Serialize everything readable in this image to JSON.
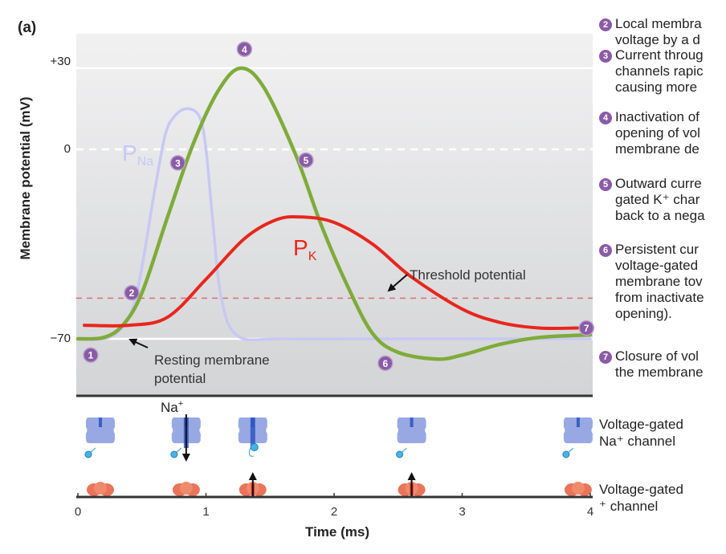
{
  "figure": {
    "panel_label": "(a)",
    "y_axis_label": "Membrane potential (mV)",
    "x_axis_label": "Time (ms)",
    "y_ticks": [
      "+30",
      "0",
      "−70"
    ],
    "x_ticks": [
      "0",
      "1",
      "2",
      "3",
      "4"
    ],
    "annotations": {
      "p_na": "P",
      "p_na_sub": "Na",
      "p_k": "P",
      "p_k_sub": "K",
      "threshold": "Threshold potential",
      "resting_line1": "Resting membrane",
      "resting_line2": "potential",
      "na_ion": "Na",
      "na_ion_sup": "+"
    },
    "step_markers": [
      "1",
      "2",
      "3",
      "4",
      "5",
      "6",
      "7"
    ],
    "steps": [
      {
        "num": "2",
        "lines": [
          "Local membra",
          "voltage by a d"
        ]
      },
      {
        "num": "3",
        "lines": [
          "Current throug",
          "channels rapic",
          "causing more"
        ]
      },
      {
        "num": "4",
        "lines": [
          "Inactivation of",
          "opening of vol",
          "membrane de"
        ]
      },
      {
        "num": "5",
        "lines": [
          "Outward curre",
          "gated K⁺ char",
          "back to a nega"
        ]
      },
      {
        "num": "6",
        "lines": [
          "Persistent cur",
          "voltage-gated",
          "membrane tov",
          "from inactivate",
          "opening)."
        ]
      },
      {
        "num": "7",
        "lines": [
          "Closure of vol",
          "the membrane"
        ]
      }
    ],
    "channel_labels": {
      "na_line1": "Voltage-gated",
      "na_line2": "Na⁺ channel",
      "k_line1": "Voltage-gated",
      "k_line2": "⁺ channel"
    },
    "colors": {
      "membrane_potential": "#7fab3a",
      "p_na": "#c8c8f5",
      "p_k": "#e8261c",
      "threshold": "#d9707a",
      "marker": "#8a5ba6",
      "na_channel": "#8d9fe0",
      "k_channel": "#e9745a"
    }
  },
  "chart_data": {
    "type": "line",
    "title": "",
    "xlabel": "Time (ms)",
    "ylabel": "Membrane potential (mV)",
    "xlim": [
      0,
      4
    ],
    "ylim": [
      -95,
      42
    ],
    "x_ticks": [
      0,
      1,
      2,
      3,
      4
    ],
    "y_ticks": [
      30,
      0,
      -70
    ],
    "reference_lines": [
      {
        "name": "Threshold potential",
        "y": -55,
        "style": "dashed"
      },
      {
        "name": "0 mV",
        "y": 0,
        "style": "dashed"
      },
      {
        "name": "+30 mV",
        "y": 30,
        "style": "solid"
      },
      {
        "name": "Resting membrane potential",
        "y": -70,
        "style": "solid"
      }
    ],
    "series": [
      {
        "name": "Membrane potential",
        "x": [
          0,
          0.2,
          0.35,
          0.5,
          0.7,
          0.9,
          1.1,
          1.27,
          1.45,
          1.7,
          1.9,
          2.1,
          2.3,
          2.5,
          2.8,
          3.0,
          3.3,
          3.6,
          4.0
        ],
        "y": [
          -70,
          -69.5,
          -65,
          -53,
          -25,
          2,
          22,
          30,
          23,
          -2,
          -28,
          -50,
          -68,
          -75,
          -77.5,
          -76,
          -72,
          -69.5,
          -68.5
        ]
      },
      {
        "name": "P_Na (relative)",
        "x": [
          0.1,
          0.3,
          0.45,
          0.6,
          0.68,
          0.75,
          0.85,
          0.95,
          1.0,
          1.05,
          1.12,
          1.25,
          1.6,
          2.5,
          4.0
        ],
        "y": [
          -70.5,
          -68,
          -55,
          -15,
          5,
          12,
          15,
          12,
          0,
          -25,
          -55,
          -69,
          -70,
          -70,
          -70
        ]
      },
      {
        "name": "P_K (relative)",
        "x": [
          0.05,
          0.4,
          0.7,
          1.0,
          1.3,
          1.55,
          1.75,
          2.0,
          2.3,
          2.6,
          3.0,
          3.3,
          3.6,
          3.9
        ],
        "y": [
          -65,
          -65,
          -62,
          -48,
          -33,
          -26,
          -25,
          -27,
          -35,
          -47,
          -59,
          -64,
          -66,
          -66
        ]
      }
    ],
    "markers": [
      {
        "label": "1",
        "t": 0.1,
        "v": -76
      },
      {
        "label": "2",
        "t": 0.42,
        "v": -53
      },
      {
        "label": "3",
        "t": 0.78,
        "v": -5
      },
      {
        "label": "4",
        "t": 1.3,
        "v": 37
      },
      {
        "label": "5",
        "t": 1.78,
        "v": -4
      },
      {
        "label": "6",
        "t": 2.4,
        "v": -79
      },
      {
        "label": "7",
        "t": 3.97,
        "v": -66
      }
    ],
    "channel_states": [
      {
        "t": 0.05,
        "na": "closed",
        "k": "closed"
      },
      {
        "t": 0.72,
        "na": "open",
        "k": "closed"
      },
      {
        "t": 1.24,
        "na": "inactivated",
        "k": "open"
      },
      {
        "t": 2.48,
        "na": "closed",
        "k": "open"
      },
      {
        "t": 3.78,
        "na": "closed",
        "k": "closed"
      }
    ]
  }
}
